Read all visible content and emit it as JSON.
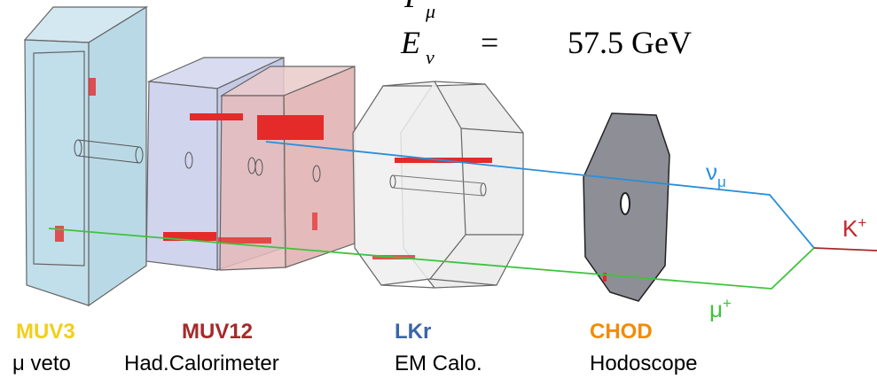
{
  "equations": [
    {
      "symbol": "P",
      "subscript": "μ"
    },
    {
      "symbol": "E",
      "subscript": "ν",
      "relation": "=",
      "value": "57.5",
      "unit": "GeV"
    }
  ],
  "detectors": [
    {
      "name": "MUV3",
      "description": "μ veto"
    },
    {
      "name": "MUV12",
      "description": "Had.Calorimeter"
    },
    {
      "name": "LKr",
      "description": "EM Calo."
    },
    {
      "name": "CHOD",
      "description": "Hodoscope"
    }
  ],
  "particles": [
    {
      "symbol": "ν",
      "subscript": "μ"
    },
    {
      "symbol": "K",
      "superscript": "+"
    },
    {
      "symbol": "μ",
      "superscript": "+"
    }
  ]
}
